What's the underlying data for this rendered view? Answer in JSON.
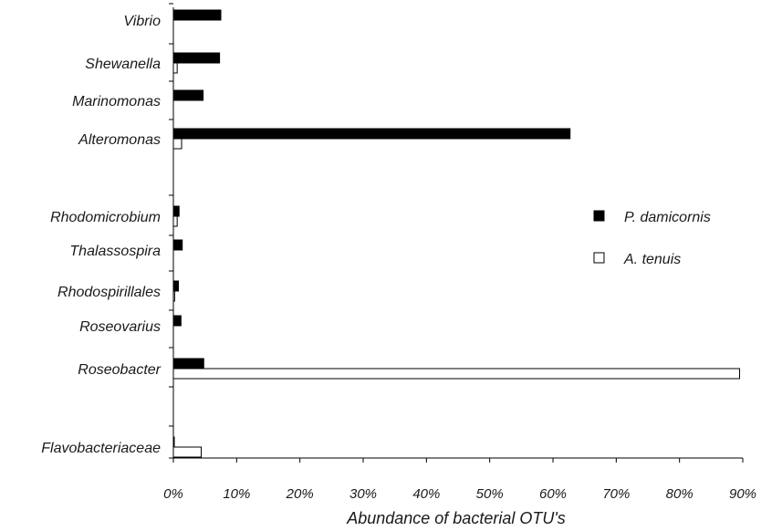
{
  "chart_data": {
    "type": "bar",
    "orientation": "horizontal",
    "categories": [
      "Vibrio",
      "Shewanella",
      "Marinomonas",
      "Alteromonas",
      "Rhodomicrobium",
      "Thalassospira",
      "Rhodospirillales",
      "Roseovarius",
      "Roseobacter",
      "Flavobacteriaceae"
    ],
    "series": [
      {
        "name": "P. damicornis",
        "color": "#000000",
        "values": [
          7.5,
          7.3,
          4.7,
          62.7,
          0.9,
          1.4,
          0.8,
          1.2,
          4.8,
          0.1
        ]
      },
      {
        "name": "A. tenuis",
        "color": "#ffffff",
        "values": [
          0.0,
          0.6,
          0.0,
          1.3,
          0.6,
          0.0,
          0.2,
          0.0,
          89.5,
          4.4
        ]
      }
    ],
    "xlabel": "Abundance of bacterial OTU's",
    "xlim": [
      0,
      90
    ],
    "xticks": [
      "0%",
      "10%",
      "20%",
      "30%",
      "40%",
      "50%",
      "60%",
      "70%",
      "80%",
      "90%"
    ],
    "grid": false,
    "legend_position": "right"
  }
}
